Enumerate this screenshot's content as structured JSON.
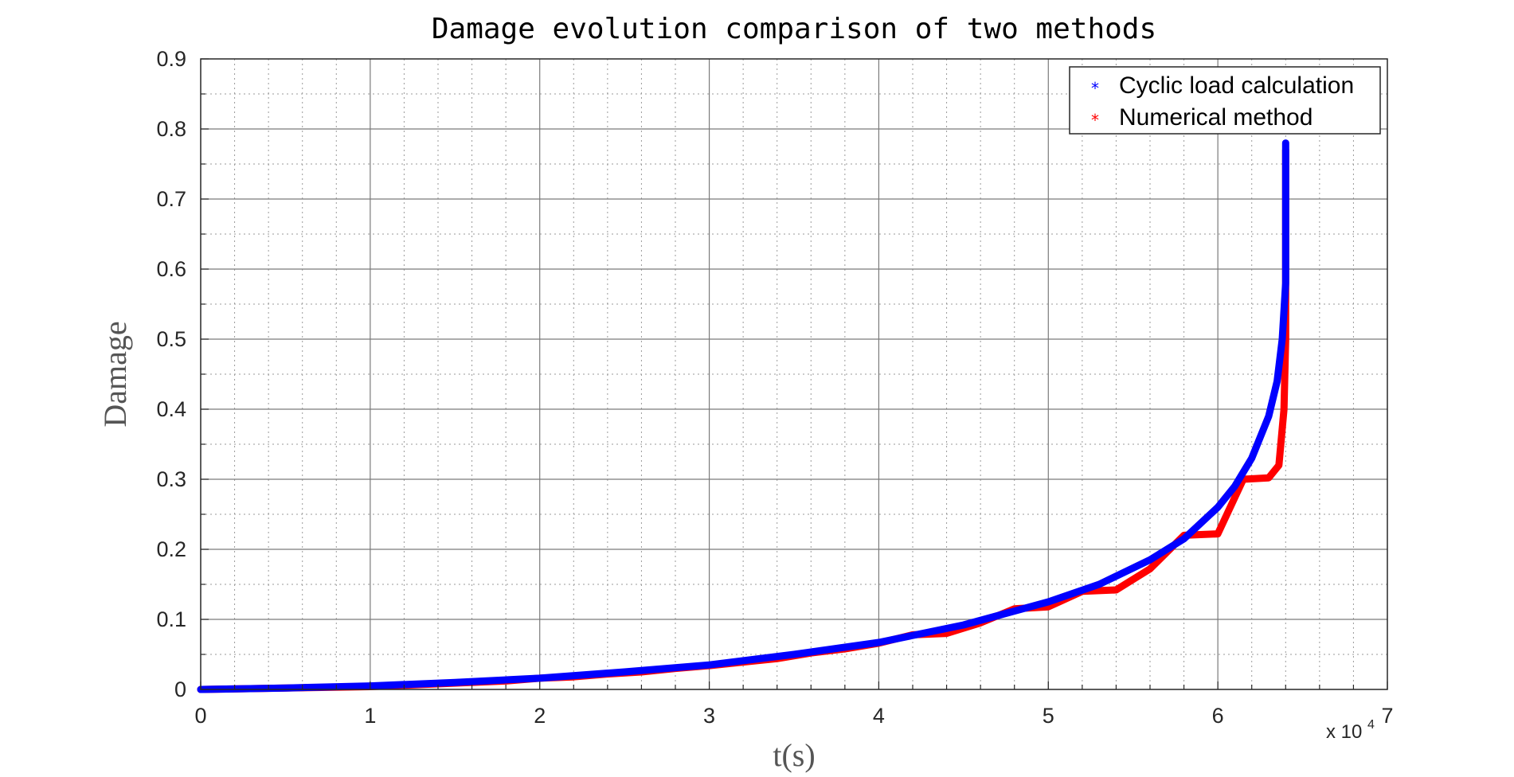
{
  "chart_data": {
    "type": "scatter",
    "title": "Damage evolution comparison of two methods",
    "xlabel": "t(s)",
    "ylabel": "Damage",
    "x_multiplier": {
      "base": "x 10",
      "exponent": "4"
    },
    "xlim": [
      0,
      7
    ],
    "ylim": [
      0,
      0.9
    ],
    "x_ticks": [
      "0",
      "1",
      "2",
      "3",
      "4",
      "5",
      "6",
      "7"
    ],
    "y_ticks": [
      "0",
      "0.1",
      "0.2",
      "0.3",
      "0.4",
      "0.5",
      "0.6",
      "0.7",
      "0.8",
      "0.9"
    ],
    "grid": true,
    "minor_grid": true,
    "legend_position": "top-right",
    "marker": "*",
    "series": [
      {
        "name": "Cyclic load calculation",
        "color": "#0000ff",
        "x": [
          0,
          0.5,
          1,
          1.5,
          2,
          2.5,
          3,
          3.5,
          4,
          4.5,
          5,
          5.3,
          5.6,
          5.8,
          6,
          6.1,
          6.2,
          6.3,
          6.35,
          6.38,
          6.4,
          6.4,
          6.4,
          6.4
        ],
        "y": [
          0,
          0.002,
          0.005,
          0.01,
          0.016,
          0.025,
          0.035,
          0.05,
          0.067,
          0.092,
          0.125,
          0.15,
          0.185,
          0.215,
          0.26,
          0.29,
          0.33,
          0.39,
          0.44,
          0.5,
          0.58,
          0.66,
          0.72,
          0.78
        ]
      },
      {
        "name": "Numerical method",
        "color": "#ff0000",
        "x": [
          0,
          1,
          1.8,
          2,
          2.2,
          2.4,
          2.6,
          2.8,
          3,
          3.2,
          3.4,
          3.6,
          3.8,
          4,
          4.2,
          4.4,
          4.6,
          4.8,
          5,
          5.2,
          5.4,
          5.6,
          5.8,
          6,
          6.15,
          6.3,
          6.36,
          6.39,
          6.4,
          6.4,
          6.4
        ],
        "y": [
          0,
          0.004,
          0.012,
          0.016,
          0.018,
          0.022,
          0.025,
          0.03,
          0.034,
          0.039,
          0.044,
          0.052,
          0.058,
          0.066,
          0.078,
          0.08,
          0.095,
          0.115,
          0.118,
          0.14,
          0.142,
          0.172,
          0.22,
          0.222,
          0.3,
          0.302,
          0.32,
          0.4,
          0.5,
          0.65,
          0.77
        ]
      }
    ]
  }
}
